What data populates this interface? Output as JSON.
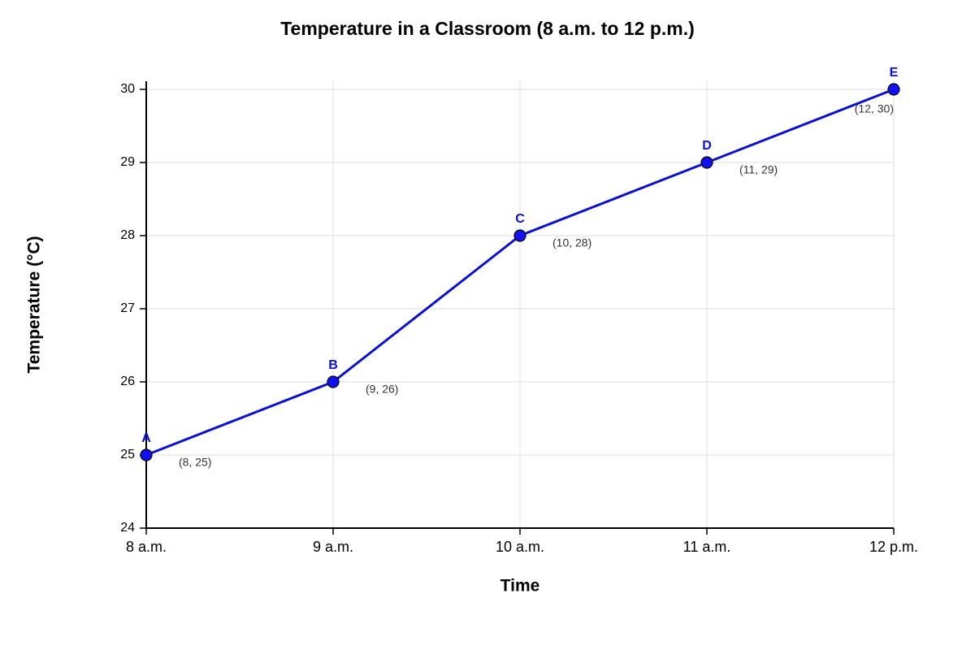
{
  "chart_data": {
    "type": "line",
    "title": "Temperature in a Classroom (8 a.m. to 12 p.m.)",
    "x_label": "Time",
    "y_label": "Temperature (°C)",
    "x": [
      8,
      9,
      10,
      11,
      12
    ],
    "values": [
      25,
      26,
      28,
      29,
      30
    ],
    "point_labels": [
      "A",
      "B",
      "C",
      "D",
      "E"
    ],
    "value_labels": [
      "(8, 25)",
      "(9, 26)",
      "(10, 28)",
      "(11, 29)",
      "(12, 30)"
    ],
    "color": "#0a10d0",
    "marker_color": "#1010f0",
    "xlim": [
      8,
      12
    ],
    "xticks": [
      {
        "value": 8,
        "label": "8 a.m."
      },
      {
        "value": 9,
        "label": "9 a.m."
      },
      {
        "value": 10,
        "label": "10 a.m."
      },
      {
        "value": 11,
        "label": "11 a.m."
      },
      {
        "value": 12,
        "label": "12 p.m."
      }
    ],
    "ylim": [
      24,
      30
    ],
    "yticks": [
      24,
      25,
      26,
      27,
      28,
      29,
      30
    ],
    "grid": true
  }
}
